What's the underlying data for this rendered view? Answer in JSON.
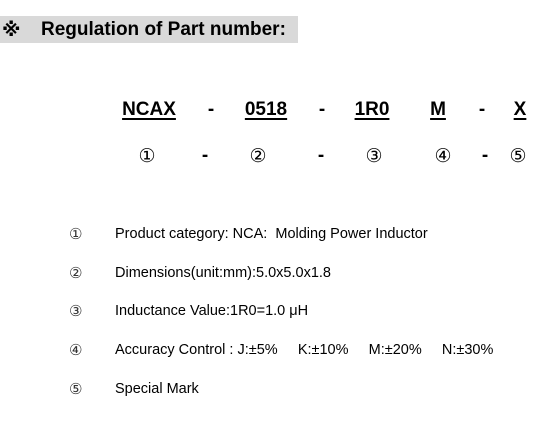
{
  "heading": {
    "mark": "※",
    "text": "Regulation of Part number:",
    "background_color": "#d9d9d9"
  },
  "part_number": {
    "codes": [
      {
        "text": "NCAX",
        "index": "①"
      },
      {
        "text": "0518",
        "index": "②"
      },
      {
        "text": "1R0",
        "index": "③"
      },
      {
        "text": "M",
        "index": "④"
      },
      {
        "text": "X",
        "index": "⑤"
      }
    ],
    "separator": "-"
  },
  "notes": [
    {
      "num": "①",
      "text": "Product category: NCA:  Molding Power Inductor"
    },
    {
      "num": "②",
      "text": "Dimensions(unit:mm):5.0x5.0x1.8"
    },
    {
      "num": "③",
      "text": "Inductance Value:1R0=1.0 μH"
    },
    {
      "num": "④",
      "text": "Accuracy Control : J:±5%     K:±10%     M:±20%     N:±30%"
    },
    {
      "num": "⑤",
      "text": "Special Mark"
    }
  ]
}
